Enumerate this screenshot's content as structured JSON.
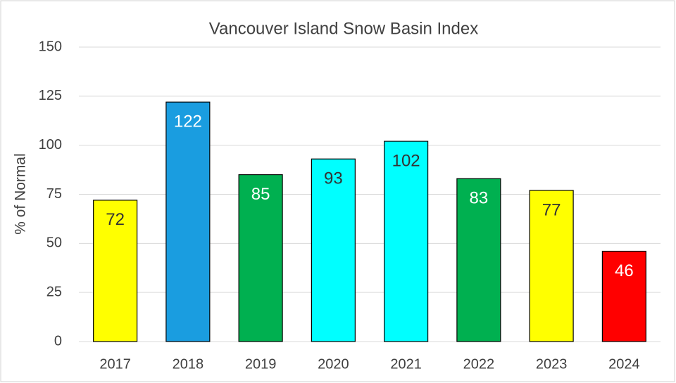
{
  "chart_data": {
    "type": "bar",
    "title": "Vancouver Island Snow Basin Index",
    "y_label": "% of Normal",
    "categories": [
      "2017",
      "2018",
      "2019",
      "2020",
      "2021",
      "2022",
      "2023",
      "2024"
    ],
    "values": [
      72,
      122,
      85,
      93,
      102,
      83,
      77,
      46
    ],
    "colors": [
      "#ffff00",
      "#1a9de0",
      "#00b050",
      "#00ffff",
      "#00ffff",
      "#00b050",
      "#ffff00",
      "#ff0000"
    ],
    "ylim": [
      0,
      150
    ],
    "yticks": [
      0,
      25,
      50,
      75,
      100,
      125,
      150
    ],
    "grid": true
  }
}
